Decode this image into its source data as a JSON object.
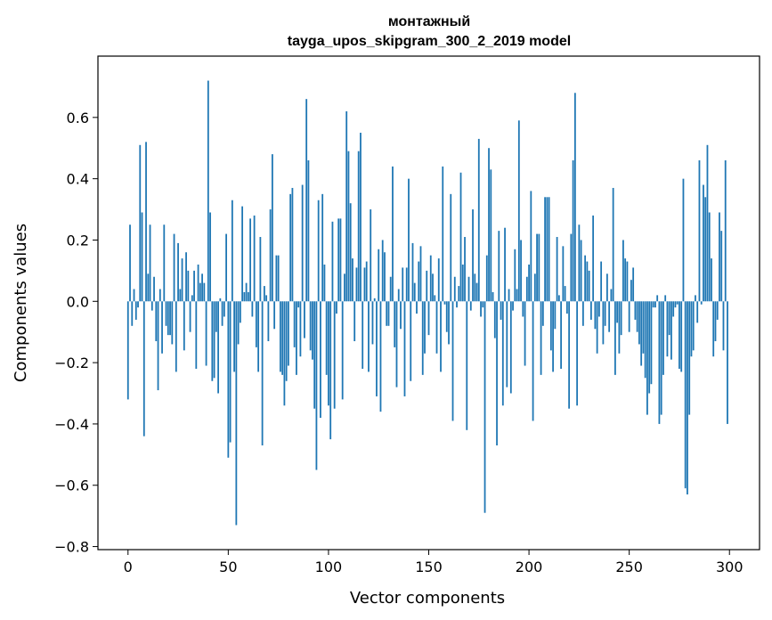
{
  "chart_data": {
    "type": "bar",
    "title": "монтажный",
    "subtitle": "tayga_upos_skipgram_300_2_2019 model",
    "xlabel": "Vector components",
    "ylabel": "Components values",
    "xlim": [
      -15,
      315
    ],
    "ylim": [
      -0.81,
      0.8
    ],
    "xticks": [
      0,
      50,
      100,
      150,
      200,
      250,
      300
    ],
    "yticks": [
      -0.8,
      -0.6,
      -0.4,
      -0.2,
      0.0,
      0.2,
      0.4,
      0.6
    ],
    "xtick_labels": [
      "0",
      "50",
      "100",
      "150",
      "200",
      "250",
      "300"
    ],
    "ytick_labels": [
      "−0.8",
      "−0.6",
      "−0.4",
      "−0.2",
      "0.0",
      "0.2",
      "0.4",
      "0.6"
    ],
    "bar_color": "#1f77b4",
    "grid": false,
    "values": [
      -0.32,
      0.25,
      -0.08,
      0.04,
      -0.06,
      -0.02,
      0.51,
      0.29,
      -0.44,
      0.52,
      0.09,
      0.25,
      -0.03,
      0.08,
      -0.13,
      -0.29,
      0.04,
      -0.17,
      0.25,
      -0.08,
      -0.11,
      -0.11,
      -0.14,
      0.22,
      -0.23,
      0.19,
      0.04,
      0.14,
      -0.16,
      0.16,
      0.1,
      -0.1,
      0.02,
      0.1,
      -0.22,
      0.12,
      0.06,
      0.09,
      0.06,
      -0.21,
      0.72,
      0.29,
      -0.26,
      -0.25,
      -0.1,
      -0.3,
      0.01,
      -0.08,
      -0.05,
      0.22,
      -0.51,
      -0.46,
      0.33,
      -0.23,
      -0.73,
      -0.14,
      -0.07,
      0.31,
      0.03,
      0.06,
      0.03,
      0.27,
      -0.05,
      0.28,
      -0.15,
      -0.23,
      0.21,
      -0.47,
      0.05,
      0.02,
      -0.13,
      0.3,
      0.48,
      -0.09,
      0.15,
      0.15,
      -0.23,
      -0.24,
      -0.34,
      -0.26,
      -0.21,
      0.35,
      0.37,
      -0.15,
      -0.24,
      -0.02,
      -0.18,
      0.38,
      -0.12,
      0.66,
      0.46,
      -0.16,
      -0.19,
      -0.35,
      -0.55,
      0.33,
      -0.38,
      0.35,
      0.12,
      -0.24,
      -0.34,
      -0.45,
      0.26,
      -0.35,
      -0.04,
      0.27,
      0.27,
      -0.32,
      0.09,
      0.62,
      0.49,
      0.32,
      0.14,
      -0.13,
      0.11,
      0.49,
      0.55,
      -0.22,
      0.11,
      0.13,
      -0.23,
      0.3,
      -0.14,
      0.01,
      -0.31,
      0.17,
      -0.36,
      0.2,
      0.16,
      -0.08,
      -0.08,
      0.08,
      0.44,
      -0.15,
      -0.28,
      0.04,
      -0.09,
      0.11,
      -0.31,
      0.11,
      0.4,
      -0.26,
      0.19,
      0.06,
      -0.04,
      0.13,
      0.18,
      -0.24,
      -0.17,
      0.1,
      -0.11,
      0.15,
      0.09,
      0.02,
      -0.17,
      0.14,
      -0.23,
      0.44,
      -0.01,
      -0.1,
      -0.14,
      0.35,
      -0.39,
      0.08,
      -0.02,
      0.05,
      0.42,
      0.12,
      0.21,
      -0.42,
      0.08,
      -0.03,
      0.3,
      0.09,
      0.06,
      0.53,
      -0.05,
      -0.02,
      -0.69,
      0.15,
      0.5,
      0.43,
      0.03,
      -0.12,
      -0.47,
      0.23,
      -0.06,
      -0.34,
      0.24,
      -0.28,
      0.04,
      -0.3,
      -0.03,
      0.17,
      0.04,
      0.59,
      0.2,
      -0.05,
      -0.21,
      0.08,
      0.12,
      0.36,
      -0.39,
      0.09,
      0.22,
      0.22,
      -0.24,
      -0.08,
      0.34,
      0.34,
      0.34,
      -0.16,
      -0.23,
      -0.09,
      0.21,
      0.02,
      -0.22,
      0.18,
      0.05,
      -0.04,
      -0.35,
      0.22,
      0.46,
      0.68,
      -0.34,
      0.25,
      0.2,
      -0.08,
      0.15,
      0.13,
      0.1,
      -0.06,
      0.28,
      -0.09,
      -0.17,
      -0.05,
      0.13,
      -0.14,
      -0.08,
      0.09,
      -0.1,
      0.04,
      0.37,
      -0.24,
      -0.07,
      -0.17,
      -0.11,
      0.2,
      0.14,
      0.13,
      -0.1,
      0.07,
      0.11,
      -0.06,
      -0.1,
      -0.14,
      -0.21,
      -0.17,
      -0.25,
      -0.37,
      -0.3,
      -0.27,
      -0.02,
      -0.02,
      0.02,
      -0.4,
      -0.37,
      -0.24,
      0.02,
      -0.18,
      -0.11,
      -0.19,
      -0.05,
      -0.02,
      -0.01,
      -0.22,
      -0.23,
      0.4,
      -0.61,
      -0.63,
      -0.37,
      -0.18,
      -0.16,
      0.02,
      -0.07,
      0.46,
      -0.01,
      0.38,
      0.34,
      0.51,
      0.29,
      0.14,
      -0.18,
      -0.13,
      -0.06,
      0.29,
      0.23,
      -0.16,
      0.46,
      -0.4
    ]
  }
}
